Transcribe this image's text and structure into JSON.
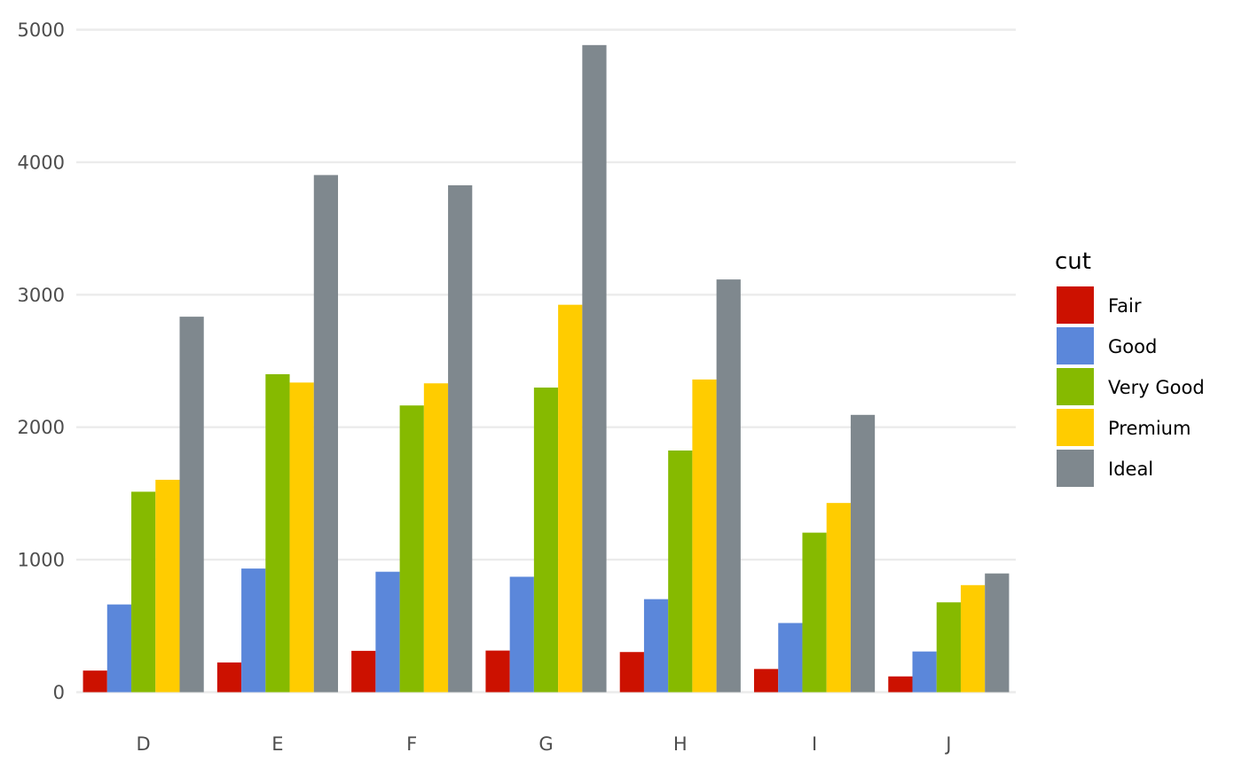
{
  "chart_data": {
    "type": "bar",
    "title": "",
    "xlabel": "",
    "ylabel": "",
    "categories": [
      "D",
      "E",
      "F",
      "G",
      "H",
      "I",
      "J"
    ],
    "ylim": [
      0,
      5000
    ],
    "yticks": [
      0,
      1000,
      2000,
      3000,
      4000,
      5000
    ],
    "grid": true,
    "legend_title": "cut",
    "legend_position": "right",
    "series": [
      {
        "name": "Fair",
        "color": "#CC1100",
        "values": [
          163,
          224,
          312,
          314,
          303,
          175,
          119
        ]
      },
      {
        "name": "Good",
        "color": "#5B87DA",
        "values": [
          662,
          933,
          909,
          871,
          702,
          522,
          307
        ]
      },
      {
        "name": "Very Good",
        "color": "#86BA00",
        "values": [
          1513,
          2400,
          2164,
          2299,
          1824,
          1204,
          678
        ]
      },
      {
        "name": "Premium",
        "color": "#FFCC00",
        "values": [
          1603,
          2337,
          2331,
          2924,
          2360,
          1428,
          808
        ]
      },
      {
        "name": "Ideal",
        "color": "#7F888E",
        "values": [
          2834,
          3903,
          3826,
          4884,
          3115,
          2093,
          896
        ]
      }
    ]
  }
}
